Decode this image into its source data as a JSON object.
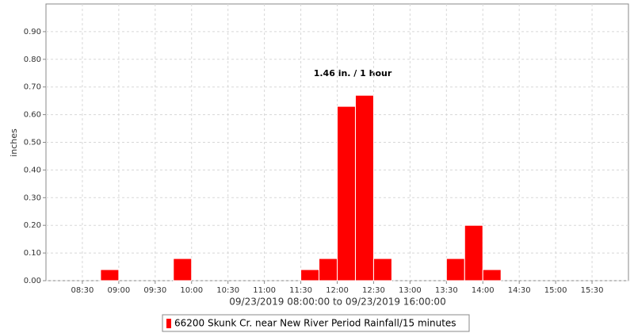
{
  "chart_data": {
    "type": "bar",
    "x_label": "09/23/2019 08:00:00 to 09/23/2019 16:00:00",
    "y_label": "inches",
    "annotation": "1.46 in. / 1 hour",
    "series": [
      {
        "name": "66200 Skunk Cr. near New River Period Rainfall/15 minutes",
        "color": "#ff0000",
        "x": [
          "08:45",
          "09:45",
          "11:30",
          "11:45",
          "12:00",
          "12:15",
          "12:30",
          "13:30",
          "13:45",
          "14:00"
        ],
        "x_end": [
          "09:00",
          "10:00",
          "11:45",
          "12:00",
          "12:15",
          "12:30",
          "12:45",
          "13:45",
          "14:00",
          "14:15"
        ],
        "values": [
          0.04,
          0.08,
          0.04,
          0.08,
          0.63,
          0.67,
          0.08,
          0.08,
          0.2,
          0.04
        ]
      }
    ],
    "xlim": [
      "08:00",
      "16:00"
    ],
    "xticks": [
      "08:30",
      "09:00",
      "09:30",
      "10:00",
      "10:30",
      "11:00",
      "11:30",
      "12:00",
      "12:30",
      "13:00",
      "13:30",
      "14:00",
      "14:30",
      "15:00",
      "15:30"
    ],
    "ylim": [
      0,
      1.0
    ],
    "yticks": [
      {
        "value": 0,
        "label": "0.00"
      },
      {
        "value": 0.1,
        "label": "0.10"
      },
      {
        "value": 0.2,
        "label": "0.20"
      },
      {
        "value": 0.3,
        "label": "0.30"
      },
      {
        "value": 0.4,
        "label": "0.40"
      },
      {
        "value": 0.5,
        "label": "0.50"
      },
      {
        "value": 0.6,
        "label": "0.60"
      },
      {
        "value": 0.7,
        "label": "0.70"
      },
      {
        "value": 0.8,
        "label": "0.80"
      },
      {
        "value": 0.9,
        "label": "0.90"
      }
    ],
    "grid": true
  }
}
